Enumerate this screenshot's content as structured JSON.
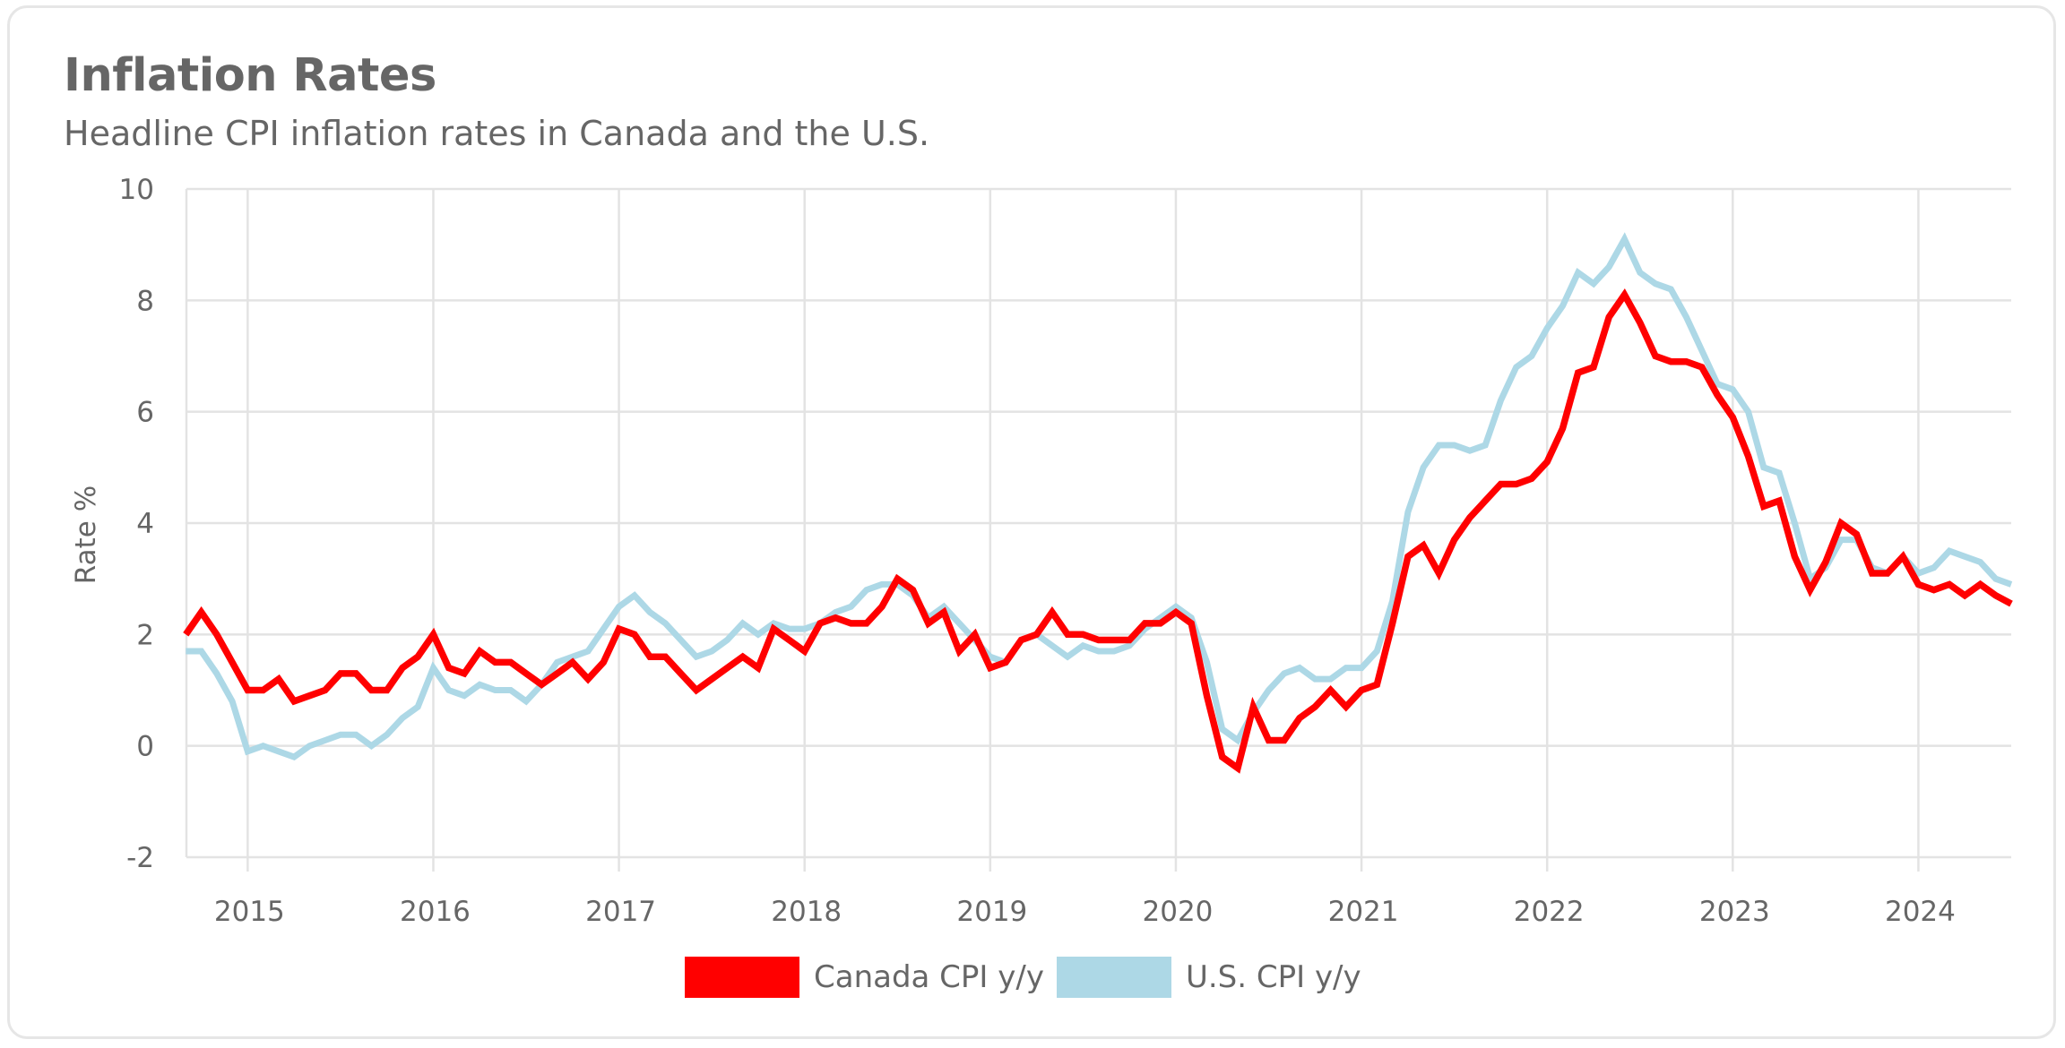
{
  "header": {
    "title": "Inflation Rates",
    "subtitle": "Headline CPI inflation rates in Canada and the U.S."
  },
  "colors": {
    "canada": "#ff0000",
    "us": "#add8e6",
    "grid": "#e3e3e3",
    "text": "#666666"
  },
  "chart_data": {
    "type": "line",
    "title": "Inflation Rates",
    "subtitle": "Headline CPI inflation rates in Canada and the U.S.",
    "xlabel": "",
    "ylabel": "Rate %",
    "xlim": [
      2014.67,
      2024.5
    ],
    "ylim": [
      -2,
      10
    ],
    "yticks": [
      -2,
      0,
      2,
      4,
      6,
      8,
      10
    ],
    "xticks": [
      "2015",
      "2016",
      "2017",
      "2018",
      "2019",
      "2020",
      "2021",
      "2022",
      "2023",
      "2024"
    ],
    "grid": true,
    "legend_position": "bottom-center",
    "start": "2014-09",
    "frequency": "monthly",
    "series": [
      {
        "name": "Canada CPI y/y",
        "color": "#ff0000",
        "values": [
          2.0,
          2.4,
          2.0,
          1.5,
          1.0,
          1.0,
          1.2,
          0.8,
          0.9,
          1.0,
          1.3,
          1.3,
          1.0,
          1.0,
          1.4,
          1.6,
          2.0,
          1.4,
          1.3,
          1.7,
          1.5,
          1.5,
          1.3,
          1.1,
          1.3,
          1.5,
          1.2,
          1.5,
          2.1,
          2.0,
          1.6,
          1.6,
          1.3,
          1.0,
          1.2,
          1.4,
          1.6,
          1.4,
          2.1,
          1.9,
          1.7,
          2.2,
          2.3,
          2.2,
          2.2,
          2.5,
          3.0,
          2.8,
          2.2,
          2.4,
          1.7,
          2.0,
          1.4,
          1.5,
          1.9,
          2.0,
          2.4,
          2.0,
          2.0,
          1.9,
          1.9,
          1.9,
          2.2,
          2.2,
          2.4,
          2.2,
          0.9,
          -0.2,
          -0.4,
          0.7,
          0.1,
          0.1,
          0.5,
          0.7,
          1.0,
          0.7,
          1.0,
          1.1,
          2.2,
          3.4,
          3.6,
          3.1,
          3.7,
          4.1,
          4.4,
          4.7,
          4.7,
          4.8,
          5.1,
          5.7,
          6.7,
          6.8,
          7.7,
          8.1,
          7.6,
          7.0,
          6.9,
          6.9,
          6.8,
          6.3,
          5.9,
          5.2,
          4.3,
          4.4,
          3.4,
          2.8,
          3.3,
          4.0,
          3.8,
          3.1,
          3.1,
          3.4,
          2.9,
          2.8,
          2.9,
          2.7,
          2.9,
          2.7,
          2.55
        ]
      },
      {
        "name": "U.S. CPI y/y",
        "color": "#add8e6",
        "values": [
          1.7,
          1.7,
          1.3,
          0.8,
          -0.1,
          0.0,
          -0.1,
          -0.2,
          0.0,
          0.1,
          0.2,
          0.2,
          0.0,
          0.2,
          0.5,
          0.7,
          1.4,
          1.0,
          0.9,
          1.1,
          1.0,
          1.0,
          0.8,
          1.1,
          1.5,
          1.6,
          1.7,
          2.1,
          2.5,
          2.7,
          2.4,
          2.2,
          1.9,
          1.6,
          1.7,
          1.9,
          2.2,
          2.0,
          2.2,
          2.1,
          2.1,
          2.2,
          2.4,
          2.5,
          2.8,
          2.9,
          2.9,
          2.7,
          2.3,
          2.5,
          2.2,
          1.9,
          1.6,
          1.5,
          1.9,
          2.0,
          1.8,
          1.6,
          1.8,
          1.7,
          1.7,
          1.8,
          2.1,
          2.3,
          2.5,
          2.3,
          1.5,
          0.3,
          0.1,
          0.6,
          1.0,
          1.3,
          1.4,
          1.2,
          1.2,
          1.4,
          1.4,
          1.7,
          2.6,
          4.2,
          5.0,
          5.4,
          5.4,
          5.3,
          5.4,
          6.2,
          6.8,
          7.0,
          7.5,
          7.9,
          8.5,
          8.3,
          8.6,
          9.1,
          8.5,
          8.3,
          8.2,
          7.7,
          7.1,
          6.5,
          6.4,
          6.0,
          5.0,
          4.9,
          4.0,
          3.0,
          3.2,
          3.7,
          3.7,
          3.2,
          3.1,
          3.4,
          3.1,
          3.2,
          3.5,
          3.4,
          3.3,
          3.0,
          2.9
        ]
      }
    ]
  }
}
